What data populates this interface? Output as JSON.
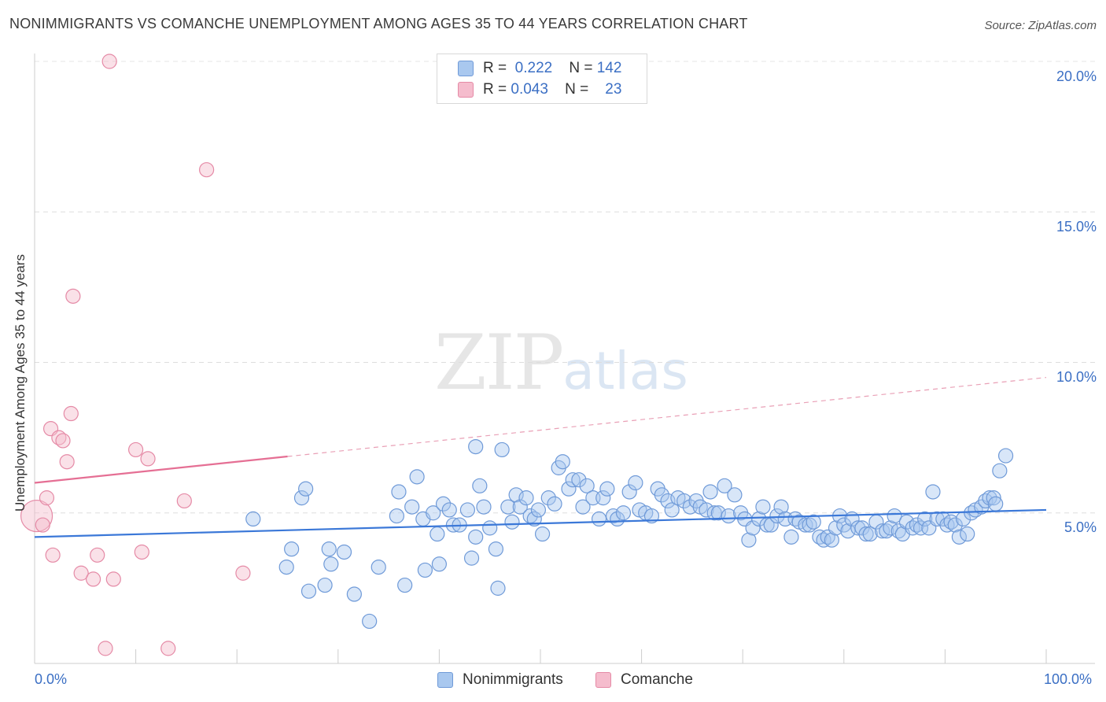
{
  "title": "NONIMMIGRANTS VS COMANCHE UNEMPLOYMENT AMONG AGES 35 TO 44 YEARS CORRELATION CHART",
  "source": "Source: ZipAtlas.com",
  "watermark": {
    "zip": "ZIP",
    "atlas": "atlas"
  },
  "colors": {
    "blue": "#3b78d8",
    "blue_fill": "#a9c8ef",
    "pink": "#e56f94",
    "pink_fill": "#f5bccd",
    "tick_text": "#3b6fc4"
  },
  "legend": {
    "rows": [
      {
        "r_label": "R =",
        "r_value": "0.222",
        "n_label": "N =",
        "n_value": "142"
      },
      {
        "r_label": "R =",
        "r_value": "0.043",
        "n_label": "N =",
        "n_value": "23"
      }
    ]
  },
  "bottom_legend": {
    "series1": "Nonimmigrants",
    "series2": "Comanche"
  },
  "chart_data": {
    "type": "scatter",
    "title": "NONIMMIGRANTS VS COMANCHE UNEMPLOYMENT AMONG AGES 35 TO 44 YEARS CORRELATION CHART",
    "xlabel": "",
    "ylabel": "Unemployment Among Ages 35 to 44 years",
    "xlim": [
      0,
      100
    ],
    "ylim": [
      0,
      20.5
    ],
    "x_tick_labels": [
      "0.0%",
      "100.0%"
    ],
    "y_ticks": [
      5,
      10,
      15,
      20
    ],
    "y_tick_labels": [
      "5.0%",
      "10.0%",
      "15.0%",
      "20.0%"
    ],
    "series": [
      {
        "name": "Nonimmigrants",
        "trend": {
          "x0": 0,
          "y0": 4.2,
          "x1": 100,
          "y1": 5.1
        },
        "points": [
          [
            21.6,
            4.8
          ],
          [
            26.4,
            5.5
          ],
          [
            26.8,
            5.8
          ],
          [
            25.4,
            3.8
          ],
          [
            24.9,
            3.2
          ],
          [
            28.7,
            2.6
          ],
          [
            27.1,
            2.4
          ],
          [
            29.3,
            3.3
          ],
          [
            29.1,
            3.8
          ],
          [
            30.6,
            3.7
          ],
          [
            31.6,
            2.3
          ],
          [
            34.0,
            3.2
          ],
          [
            33.1,
            1.4
          ],
          [
            36.0,
            5.7
          ],
          [
            35.8,
            4.9
          ],
          [
            36.6,
            2.6
          ],
          [
            37.3,
            5.2
          ],
          [
            37.8,
            6.2
          ],
          [
            38.4,
            4.8
          ],
          [
            38.6,
            3.1
          ],
          [
            39.4,
            5.0
          ],
          [
            39.8,
            4.3
          ],
          [
            40.0,
            3.3
          ],
          [
            40.4,
            5.3
          ],
          [
            41.0,
            5.1
          ],
          [
            41.4,
            4.6
          ],
          [
            42.0,
            4.6
          ],
          [
            42.8,
            5.1
          ],
          [
            43.2,
            3.5
          ],
          [
            43.6,
            4.2
          ],
          [
            43.6,
            7.2
          ],
          [
            44.0,
            5.9
          ],
          [
            44.4,
            5.2
          ],
          [
            45.0,
            4.5
          ],
          [
            45.6,
            3.8
          ],
          [
            45.8,
            2.5
          ],
          [
            46.2,
            7.1
          ],
          [
            46.8,
            5.2
          ],
          [
            47.2,
            4.7
          ],
          [
            47.6,
            5.6
          ],
          [
            48.0,
            5.2
          ],
          [
            48.6,
            5.5
          ],
          [
            49.0,
            4.9
          ],
          [
            49.4,
            4.8
          ],
          [
            49.8,
            5.1
          ],
          [
            50.2,
            4.3
          ],
          [
            50.8,
            5.5
          ],
          [
            51.4,
            5.3
          ],
          [
            51.8,
            6.5
          ],
          [
            52.2,
            6.7
          ],
          [
            52.8,
            5.8
          ],
          [
            53.2,
            6.1
          ],
          [
            53.8,
            6.1
          ],
          [
            54.2,
            5.2
          ],
          [
            54.6,
            5.9
          ],
          [
            55.2,
            5.5
          ],
          [
            55.8,
            4.8
          ],
          [
            56.2,
            5.5
          ],
          [
            56.6,
            5.8
          ],
          [
            57.2,
            4.9
          ],
          [
            57.6,
            4.8
          ],
          [
            58.2,
            5.0
          ],
          [
            58.8,
            5.7
          ],
          [
            59.4,
            6.0
          ],
          [
            59.8,
            5.1
          ],
          [
            60.4,
            5.0
          ],
          [
            61.0,
            4.9
          ],
          [
            61.6,
            5.8
          ],
          [
            62.0,
            5.6
          ],
          [
            62.6,
            5.4
          ],
          [
            63.0,
            5.1
          ],
          [
            63.6,
            5.5
          ],
          [
            64.2,
            5.4
          ],
          [
            64.8,
            5.2
          ],
          [
            65.4,
            5.4
          ],
          [
            65.8,
            5.2
          ],
          [
            66.4,
            5.1
          ],
          [
            66.8,
            5.7
          ],
          [
            67.2,
            5.0
          ],
          [
            67.6,
            5.0
          ],
          [
            68.2,
            5.9
          ],
          [
            68.6,
            4.9
          ],
          [
            69.2,
            5.6
          ],
          [
            69.8,
            5.0
          ],
          [
            70.2,
            4.8
          ],
          [
            70.6,
            4.1
          ],
          [
            71.0,
            4.5
          ],
          [
            71.6,
            4.8
          ],
          [
            72.0,
            5.2
          ],
          [
            72.4,
            4.6
          ],
          [
            72.8,
            4.6
          ],
          [
            73.4,
            4.9
          ],
          [
            73.8,
            5.2
          ],
          [
            74.2,
            4.8
          ],
          [
            74.8,
            4.2
          ],
          [
            75.2,
            4.8
          ],
          [
            75.6,
            4.7
          ],
          [
            76.2,
            4.6
          ],
          [
            76.6,
            4.6
          ],
          [
            77.0,
            4.7
          ],
          [
            77.6,
            4.2
          ],
          [
            78.0,
            4.1
          ],
          [
            78.4,
            4.2
          ],
          [
            78.8,
            4.1
          ],
          [
            79.2,
            4.5
          ],
          [
            79.6,
            4.9
          ],
          [
            80.0,
            4.6
          ],
          [
            80.4,
            4.4
          ],
          [
            80.8,
            4.8
          ],
          [
            81.4,
            4.5
          ],
          [
            81.8,
            4.5
          ],
          [
            82.2,
            4.3
          ],
          [
            82.6,
            4.3
          ],
          [
            83.2,
            4.7
          ],
          [
            83.8,
            4.4
          ],
          [
            84.2,
            4.4
          ],
          [
            84.6,
            4.5
          ],
          [
            85.0,
            4.9
          ],
          [
            85.4,
            4.4
          ],
          [
            85.8,
            4.3
          ],
          [
            86.2,
            4.7
          ],
          [
            86.8,
            4.5
          ],
          [
            87.2,
            4.6
          ],
          [
            87.6,
            4.5
          ],
          [
            88.0,
            4.8
          ],
          [
            88.4,
            4.5
          ],
          [
            88.8,
            5.7
          ],
          [
            89.2,
            4.8
          ],
          [
            89.8,
            4.8
          ],
          [
            90.2,
            4.6
          ],
          [
            90.6,
            4.7
          ],
          [
            91.0,
            4.6
          ],
          [
            91.4,
            4.2
          ],
          [
            91.8,
            4.8
          ],
          [
            92.2,
            4.3
          ],
          [
            92.6,
            5.0
          ],
          [
            93.0,
            5.1
          ],
          [
            93.6,
            5.2
          ],
          [
            94.0,
            5.4
          ],
          [
            94.4,
            5.5
          ],
          [
            94.8,
            5.5
          ],
          [
            95.4,
            6.4
          ],
          [
            96.0,
            6.9
          ],
          [
            95.0,
            5.3
          ]
        ]
      },
      {
        "name": "Comanche",
        "trend": {
          "x0": 0,
          "y0": 6.0,
          "x1": 100,
          "y1": 9.5,
          "solid_until": 25
        },
        "points": [
          [
            0.2,
            4.9
          ],
          [
            0.8,
            4.6
          ],
          [
            1.2,
            5.5
          ],
          [
            1.6,
            7.8
          ],
          [
            1.8,
            3.6
          ],
          [
            2.4,
            7.5
          ],
          [
            2.8,
            7.4
          ],
          [
            3.2,
            6.7
          ],
          [
            3.6,
            8.3
          ],
          [
            3.8,
            12.2
          ],
          [
            4.6,
            3.0
          ],
          [
            5.8,
            2.8
          ],
          [
            6.2,
            3.6
          ],
          [
            7.0,
            0.5
          ],
          [
            7.4,
            20.0
          ],
          [
            7.8,
            2.8
          ],
          [
            10.0,
            7.1
          ],
          [
            10.6,
            3.7
          ],
          [
            11.2,
            6.8
          ],
          [
            13.2,
            0.5
          ],
          [
            14.8,
            5.4
          ],
          [
            17.0,
            16.4
          ],
          [
            20.6,
            3.0
          ]
        ]
      }
    ]
  }
}
